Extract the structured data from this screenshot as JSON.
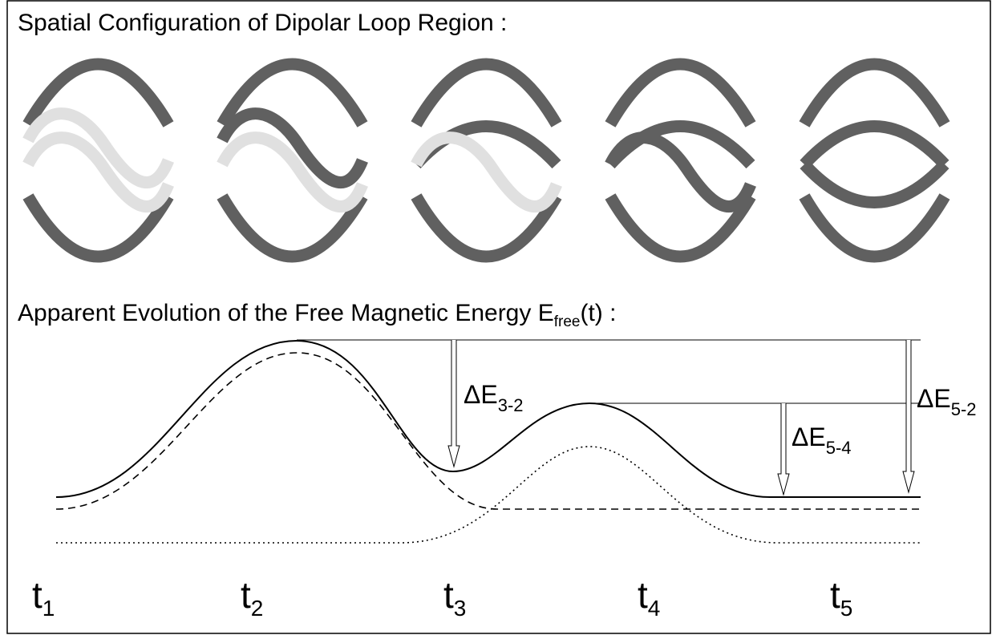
{
  "top_title": "Spatial Configuration of Dipolar Loop Region :",
  "energy_title": {
    "text": "Apparent Evolution of the Free Magnetic Energy E",
    "subscript": "free",
    "suffix": "(t) :"
  },
  "deltas": [
    {
      "symbol": "ΔE",
      "subscript": "3-2"
    },
    {
      "symbol": "ΔE",
      "subscript": "5-4"
    },
    {
      "symbol": "ΔE",
      "subscript": "5-2"
    }
  ],
  "times": [
    {
      "symbol": "t",
      "subscript": "1"
    },
    {
      "symbol": "t",
      "subscript": "2"
    },
    {
      "symbol": "t",
      "subscript": "3"
    },
    {
      "symbol": "t",
      "subscript": "4"
    },
    {
      "symbol": "t",
      "subscript": "5"
    }
  ]
}
